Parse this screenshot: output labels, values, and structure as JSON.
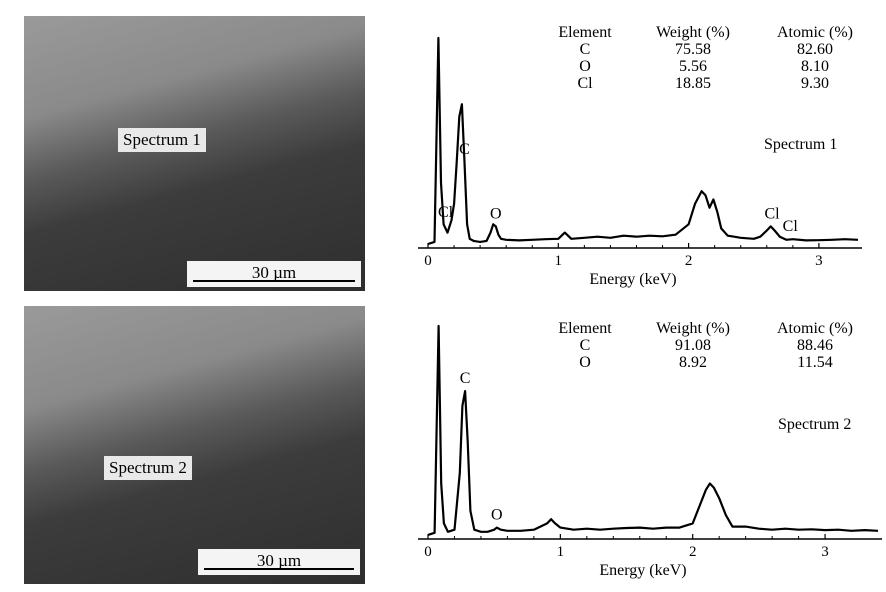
{
  "images": [
    {
      "label": "Spectrum 1",
      "scale_text": "30 µm"
    },
    {
      "label": "Spectrum 2",
      "scale_text": "30 µm"
    }
  ],
  "chart_data": [
    {
      "type": "line",
      "title": "Spectrum 1",
      "xlabel": "Energy (keV)",
      "ylabel": "",
      "xlim": [
        0,
        3.3
      ],
      "x_ticks": [
        "0",
        "1",
        "2",
        "3"
      ],
      "table": {
        "headers": [
          "Element",
          "Weight (%)",
          "Atomic (%)"
        ],
        "rows": [
          [
            "C",
            "75.58",
            "82.60"
          ],
          [
            "O",
            "5.56",
            "8.10"
          ],
          [
            "Cl",
            "18.85",
            "9.30"
          ]
        ]
      },
      "peak_labels": [
        {
          "text": "Cl",
          "x": 0.15
        },
        {
          "text": "C",
          "x": 0.28
        },
        {
          "text": "O",
          "x": 0.52
        },
        {
          "text": "Cl",
          "x": 2.64
        },
        {
          "text": "Cl",
          "x": 2.78
        }
      ],
      "series": [
        {
          "x": [
            0.0,
            0.05,
            0.08,
            0.1,
            0.12,
            0.15,
            0.18,
            0.2,
            0.22,
            0.24,
            0.26,
            0.28,
            0.3,
            0.32,
            0.35,
            0.4,
            0.45,
            0.48,
            0.5,
            0.52,
            0.54,
            0.56,
            0.6,
            0.7,
            0.8,
            0.9,
            1.0,
            1.05,
            1.1,
            1.2,
            1.3,
            1.4,
            1.5,
            1.6,
            1.7,
            1.8,
            1.9,
            2.0,
            2.05,
            2.1,
            2.13,
            2.16,
            2.19,
            2.22,
            2.25,
            2.3,
            2.35,
            2.4,
            2.5,
            2.55,
            2.6,
            2.63,
            2.66,
            2.7,
            2.75,
            2.8,
            2.9,
            3.0,
            3.1,
            3.2,
            3.3
          ],
          "y": [
            0.5,
            1.5,
            100,
            30,
            10,
            6,
            12,
            20,
            40,
            62,
            68,
            40,
            10,
            3,
            2,
            1.5,
            2,
            6,
            10,
            9,
            5,
            3,
            2.5,
            2.2,
            2.5,
            2.8,
            3,
            6,
            3,
            3.5,
            4,
            3.5,
            4.5,
            4,
            4.5,
            4.2,
            5,
            10,
            20,
            26,
            24,
            18,
            22,
            16,
            8,
            4.5,
            4,
            3.5,
            3,
            4,
            7,
            9,
            7,
            4,
            2.5,
            2.8,
            2.2,
            2.3,
            2.5,
            2.8,
            2.5
          ]
        }
      ]
    },
    {
      "type": "line",
      "title": "Spectrum 2",
      "xlabel": "Energy (keV)",
      "ylabel": "",
      "xlim": [
        0,
        3.4
      ],
      "x_ticks": [
        "0",
        "1",
        "2",
        "3"
      ],
      "table": {
        "headers": [
          "Element",
          "Weight (%)",
          "Atomic (%)"
        ],
        "rows": [
          [
            "C",
            "91.08",
            "88.46"
          ],
          [
            "O",
            "8.92",
            "11.54"
          ]
        ]
      },
      "peak_labels": [
        {
          "text": "C",
          "x": 0.28
        },
        {
          "text": "O",
          "x": 0.52
        }
      ],
      "series": [
        {
          "x": [
            0.0,
            0.05,
            0.08,
            0.1,
            0.12,
            0.15,
            0.2,
            0.24,
            0.26,
            0.28,
            0.3,
            0.32,
            0.35,
            0.4,
            0.45,
            0.5,
            0.52,
            0.55,
            0.6,
            0.7,
            0.8,
            0.9,
            0.93,
            0.96,
            1.0,
            1.1,
            1.2,
            1.3,
            1.4,
            1.5,
            1.6,
            1.7,
            1.8,
            1.9,
            2.0,
            2.05,
            2.1,
            2.13,
            2.16,
            2.2,
            2.25,
            2.3,
            2.4,
            2.5,
            2.6,
            2.7,
            2.8,
            2.9,
            3.0,
            3.1,
            3.2,
            3.3,
            3.4
          ],
          "y": [
            0.5,
            1.5,
            100,
            25,
            6,
            2,
            3,
            30,
            62,
            69,
            45,
            12,
            3,
            2,
            2,
            3,
            4,
            3,
            2.5,
            2.5,
            3,
            6,
            8,
            6,
            4,
            3,
            3.5,
            3,
            3.5,
            3.8,
            4,
            3.5,
            4,
            4,
            6,
            14,
            22,
            25,
            23,
            18,
            10,
            4.5,
            4.5,
            3.5,
            3,
            3.5,
            3,
            3.2,
            2.8,
            3,
            2.5,
            2.8,
            2.5
          ]
        }
      ]
    }
  ]
}
